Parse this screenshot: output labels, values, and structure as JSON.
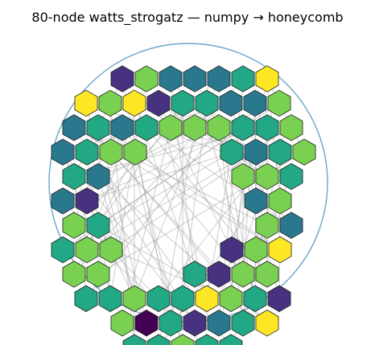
{
  "title": "80-node watts_strogatz — numpy → honeycomb",
  "palette": {
    "deep": "#440154",
    "indigo": "#46327e",
    "blue": "#2a788e",
    "teal": "#22a884",
    "green": "#7ad151",
    "yellow": "#fde725",
    "boundary": "#6aa6c8",
    "edge": "#9a9a9a",
    "hex_stroke": "#1f1f1f"
  },
  "nodes": [
    {
      "row": 0,
      "col": 0,
      "color": "indigo"
    },
    {
      "row": 0,
      "col": 1,
      "color": "green"
    },
    {
      "row": 0,
      "col": 2,
      "color": "blue"
    },
    {
      "row": 0,
      "col": 3,
      "color": "blue"
    },
    {
      "row": 0,
      "col": 4,
      "color": "blue"
    },
    {
      "row": 0,
      "col": 5,
      "color": "teal"
    },
    {
      "row": 0,
      "col": 6,
      "color": "yellow"
    },
    {
      "row": 1,
      "col": 0,
      "color": "yellow"
    },
    {
      "row": 1,
      "col": 1,
      "color": "green"
    },
    {
      "row": 1,
      "col": 2,
      "color": "yellow"
    },
    {
      "row": 1,
      "col": 3,
      "color": "indigo"
    },
    {
      "row": 1,
      "col": 4,
      "color": "teal"
    },
    {
      "row": 1,
      "col": 5,
      "color": "teal"
    },
    {
      "row": 1,
      "col": 6,
      "color": "blue"
    },
    {
      "row": 1,
      "col": 7,
      "color": "blue"
    },
    {
      "row": 1,
      "col": 8,
      "color": "green"
    },
    {
      "row": 2,
      "col": 0,
      "color": "blue"
    },
    {
      "row": 2,
      "col": 1,
      "color": "teal"
    },
    {
      "row": 2,
      "col": 2,
      "color": "blue"
    },
    {
      "row": 2,
      "col": 3,
      "color": "teal"
    },
    {
      "row": 2,
      "col": 4,
      "color": "green"
    },
    {
      "row": 2,
      "col": 5,
      "color": "green"
    },
    {
      "row": 2,
      "col": 6,
      "color": "green"
    },
    {
      "row": 2,
      "col": 7,
      "color": "teal"
    },
    {
      "row": 2,
      "col": 8,
      "color": "teal"
    },
    {
      "row": 2,
      "col": 9,
      "color": "green"
    },
    {
      "row": 3,
      "col": 0,
      "color": "blue"
    },
    {
      "row": 3,
      "col": 1,
      "color": "teal"
    },
    {
      "row": 3,
      "col": 2,
      "color": "green"
    },
    {
      "row": 3,
      "col": 3,
      "color": "green"
    },
    {
      "row": 3,
      "col": 7,
      "color": "teal"
    },
    {
      "row": 3,
      "col": 8,
      "color": "blue"
    },
    {
      "row": 3,
      "col": 9,
      "color": "teal"
    },
    {
      "row": 3,
      "col": 10,
      "color": "green"
    },
    {
      "row": 4,
      "col": 0,
      "color": "teal"
    },
    {
      "row": 4,
      "col": 1,
      "color": "blue"
    },
    {
      "row": 4,
      "col": 7,
      "color": "green"
    },
    {
      "row": 4,
      "col": 8,
      "color": "green"
    },
    {
      "row": 4,
      "col": 9,
      "color": "teal"
    },
    {
      "row": 5,
      "col": 0,
      "color": "blue"
    },
    {
      "row": 5,
      "col": 1,
      "color": "indigo"
    },
    {
      "row": 5,
      "col": 8,
      "color": "blue"
    },
    {
      "row": 5,
      "col": 9,
      "color": "green"
    },
    {
      "row": 6,
      "col": 0,
      "color": "green"
    },
    {
      "row": 6,
      "col": 1,
      "color": "teal"
    },
    {
      "row": 6,
      "col": 8,
      "color": "green"
    },
    {
      "row": 6,
      "col": 9,
      "color": "blue"
    },
    {
      "row": 7,
      "col": 0,
      "color": "teal"
    },
    {
      "row": 7,
      "col": 1,
      "color": "green"
    },
    {
      "row": 7,
      "col": 2,
      "color": "green"
    },
    {
      "row": 7,
      "col": 7,
      "color": "indigo"
    },
    {
      "row": 7,
      "col": 8,
      "color": "green"
    },
    {
      "row": 7,
      "col": 9,
      "color": "yellow"
    },
    {
      "row": 8,
      "col": 0,
      "color": "green"
    },
    {
      "row": 8,
      "col": 1,
      "color": "green"
    },
    {
      "row": 8,
      "col": 5,
      "color": "teal"
    },
    {
      "row": 8,
      "col": 6,
      "color": "indigo"
    },
    {
      "row": 8,
      "col": 7,
      "color": "green"
    },
    {
      "row": 8,
      "col": 8,
      "color": "green"
    },
    {
      "row": 9,
      "col": 0,
      "color": "teal"
    },
    {
      "row": 9,
      "col": 1,
      "color": "teal"
    },
    {
      "row": 9,
      "col": 2,
      "color": "green"
    },
    {
      "row": 9,
      "col": 3,
      "color": "teal"
    },
    {
      "row": 9,
      "col": 4,
      "color": "teal"
    },
    {
      "row": 9,
      "col": 5,
      "color": "yellow"
    },
    {
      "row": 9,
      "col": 6,
      "color": "green"
    },
    {
      "row": 9,
      "col": 7,
      "color": "teal"
    },
    {
      "row": 9,
      "col": 8,
      "color": "indigo"
    },
    {
      "row": 10,
      "col": 0,
      "color": "green"
    },
    {
      "row": 10,
      "col": 1,
      "color": "deep"
    },
    {
      "row": 10,
      "col": 2,
      "color": "teal"
    },
    {
      "row": 10,
      "col": 3,
      "color": "indigo"
    },
    {
      "row": 10,
      "col": 4,
      "color": "blue"
    },
    {
      "row": 10,
      "col": 5,
      "color": "teal"
    },
    {
      "row": 10,
      "col": 6,
      "color": "yellow"
    },
    {
      "row": 11,
      "col": 0,
      "color": "teal"
    },
    {
      "row": 11,
      "col": 1,
      "color": "teal"
    },
    {
      "row": 11,
      "col": 2,
      "color": "green"
    },
    {
      "row": 11,
      "col": 3,
      "color": "teal"
    },
    {
      "row": 11,
      "col": 4,
      "color": "teal"
    }
  ],
  "edges": [
    [
      0,
      34
    ],
    [
      0,
      70
    ],
    [
      1,
      48
    ],
    [
      2,
      55
    ],
    [
      3,
      66
    ],
    [
      4,
      29
    ],
    [
      5,
      53
    ],
    [
      6,
      42
    ],
    [
      7,
      61
    ],
    [
      8,
      28
    ],
    [
      9,
      75
    ],
    [
      10,
      50
    ],
    [
      11,
      63
    ],
    [
      12,
      37
    ],
    [
      13,
      26
    ],
    [
      14,
      57
    ],
    [
      15,
      44
    ],
    [
      16,
      79
    ],
    [
      17,
      52
    ],
    [
      18,
      33
    ],
    [
      19,
      46
    ],
    [
      20,
      68
    ],
    [
      21,
      39
    ],
    [
      22,
      73
    ],
    [
      23,
      47
    ],
    [
      24,
      58
    ],
    [
      25,
      62
    ],
    [
      26,
      71
    ],
    [
      27,
      60
    ],
    [
      28,
      56
    ],
    [
      29,
      77
    ],
    [
      30,
      64
    ],
    [
      31,
      49
    ],
    [
      32,
      67
    ],
    [
      33,
      54
    ],
    [
      34,
      59
    ],
    [
      35,
      74
    ],
    [
      36,
      65
    ],
    [
      37,
      72
    ],
    [
      38,
      51
    ],
    [
      40,
      69
    ],
    [
      41,
      76
    ],
    [
      43,
      78
    ],
    [
      45,
      70
    ],
    [
      1,
      60
    ],
    [
      3,
      45
    ],
    [
      5,
      72
    ],
    [
      7,
      38
    ],
    [
      9,
      55
    ],
    [
      11,
      44
    ],
    [
      13,
      67
    ],
    [
      15,
      35
    ],
    [
      17,
      69
    ],
    [
      19,
      58
    ],
    [
      21,
      76
    ],
    [
      23,
      40
    ],
    [
      25,
      48
    ],
    [
      27,
      71
    ],
    [
      29,
      53
    ],
    [
      31,
      66
    ],
    [
      2,
      46
    ],
    [
      4,
      61
    ],
    [
      6,
      50
    ],
    [
      8,
      75
    ],
    [
      10,
      37
    ],
    [
      12,
      63
    ],
    [
      14,
      41
    ],
    [
      16,
      52
    ],
    [
      18,
      77
    ],
    [
      20,
      43
    ],
    [
      22,
      59
    ],
    [
      24,
      34
    ],
    [
      26,
      68
    ],
    [
      28,
      74
    ],
    [
      30,
      47
    ],
    [
      32,
      73
    ],
    [
      36,
      57
    ],
    [
      39,
      62
    ],
    [
      42,
      79
    ],
    [
      49,
      65
    ],
    [
      0,
      20
    ],
    [
      6,
      33
    ],
    [
      10,
      64
    ],
    [
      16,
      45
    ],
    [
      18,
      57
    ],
    [
      22,
      66
    ],
    [
      26,
      49
    ],
    [
      30,
      40
    ],
    [
      35,
      61
    ],
    [
      44,
      74
    ]
  ]
}
